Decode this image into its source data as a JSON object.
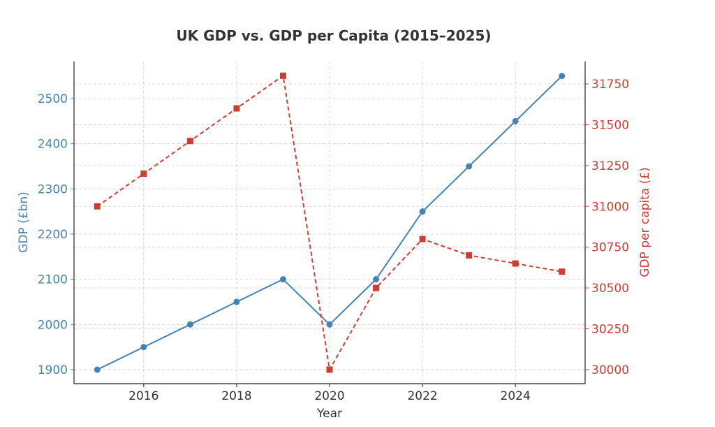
{
  "chart_data": {
    "type": "line",
    "title": "UK GDP vs. GDP per Capita (2015–2025)",
    "xlabel": "Year",
    "ylabel_left": "GDP (£bn)",
    "ylabel_right": "GDP per capita (£)",
    "x": [
      2015,
      2016,
      2017,
      2018,
      2019,
      2020,
      2021,
      2022,
      2023,
      2024,
      2025
    ],
    "xlim": [
      2014.5,
      2025.5
    ],
    "xticks": [
      2016,
      2018,
      2020,
      2022,
      2024
    ],
    "ylim_left": [
      1869,
      2582
    ],
    "yticks_left": [
      1900,
      2000,
      2100,
      2200,
      2300,
      2400,
      2500
    ],
    "ylim_right": [
      29914,
      31887
    ],
    "yticks_right": [
      30000,
      30250,
      30500,
      30750,
      31000,
      31250,
      31500,
      31750
    ],
    "grid": true,
    "series": [
      {
        "name": "GDP (£bn)",
        "axis": "left",
        "color": "#4682b4",
        "marker": "circle",
        "linestyle": "solid",
        "values": [
          1900,
          1950,
          2000,
          2050,
          2100,
          2000,
          2100,
          2250,
          2350,
          2450,
          2550
        ]
      },
      {
        "name": "GDP per capita (£)",
        "axis": "right",
        "color": "#cc3d33",
        "marker": "square",
        "linestyle": "dashed",
        "values": [
          31000,
          31200,
          31400,
          31600,
          31800,
          30000,
          30500,
          30800,
          30700,
          30650,
          30600
        ]
      }
    ]
  }
}
